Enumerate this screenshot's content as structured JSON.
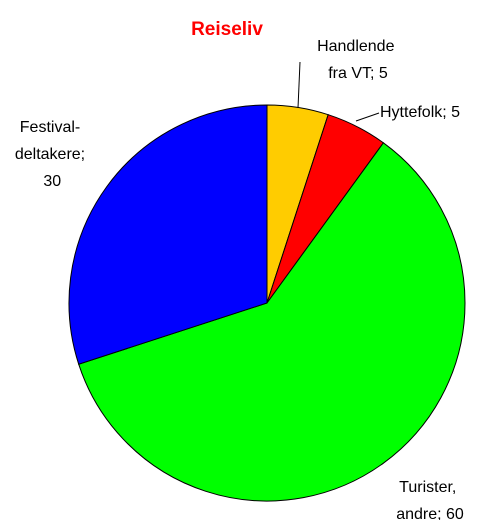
{
  "chart_data": {
    "type": "pie",
    "title": "Reiseliv",
    "values": [
      5,
      5,
      60,
      30
    ],
    "value_labels": [
      "Handlende fra VT; 5",
      "Hyttefolk; 5",
      "Turister, andre; 60",
      "Festival-deltakere; 30"
    ],
    "colors": [
      "#ffcc00",
      "#ff0000",
      "#00ff00",
      "#0000ff"
    ]
  }
}
